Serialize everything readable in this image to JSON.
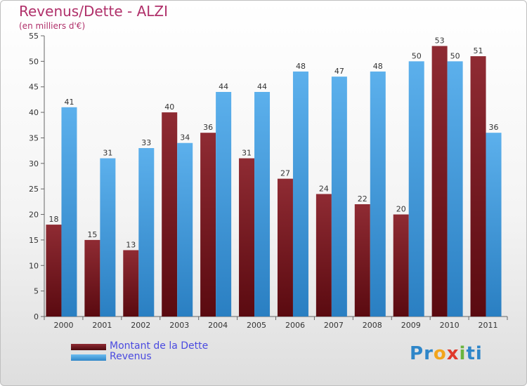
{
  "header": {
    "title": "Revenus/Dette - ALZI",
    "subtitle": "(en milliers d'€)"
  },
  "legend": {
    "items": [
      {
        "label": "Montant de la Dette",
        "color": "#7a1f24"
      },
      {
        "label": "Revenus",
        "color": "#4ea6e6"
      }
    ]
  },
  "logo": {
    "text": "Proxiti",
    "letters": [
      "P",
      "r",
      "o",
      "x",
      "i",
      "t",
      "i"
    ],
    "letter_colors": [
      "#2e86c9",
      "#2e86c9",
      "#f2a51c",
      "#e0392b",
      "#6ab43f",
      "#2e86c9",
      "#2e86c9"
    ]
  },
  "chart_data": {
    "type": "bar",
    "categories": [
      "2000",
      "2001",
      "2002",
      "2003",
      "2004",
      "2005",
      "2006",
      "2007",
      "2008",
      "2009",
      "2010",
      "2011"
    ],
    "series": [
      {
        "name": "Montant de la Dette",
        "values": [
          18,
          15,
          13,
          40,
          36,
          31,
          27,
          24,
          22,
          20,
          53,
          51
        ],
        "color": "#7a1f24"
      },
      {
        "name": "Revenus",
        "values": [
          41,
          31,
          33,
          34,
          44,
          44,
          48,
          47,
          48,
          50,
          50,
          36
        ],
        "color": "#4ea6e6"
      }
    ],
    "title": "Revenus/Dette - ALZI",
    "subtitle": "(en milliers d'€)",
    "xlabel": "",
    "ylabel": "",
    "ylim": [
      0,
      55
    ],
    "yticks": [
      0,
      5,
      10,
      15,
      20,
      25,
      30,
      35,
      40,
      45,
      50,
      55
    ],
    "grid": false,
    "legend_position": "bottom-left"
  }
}
